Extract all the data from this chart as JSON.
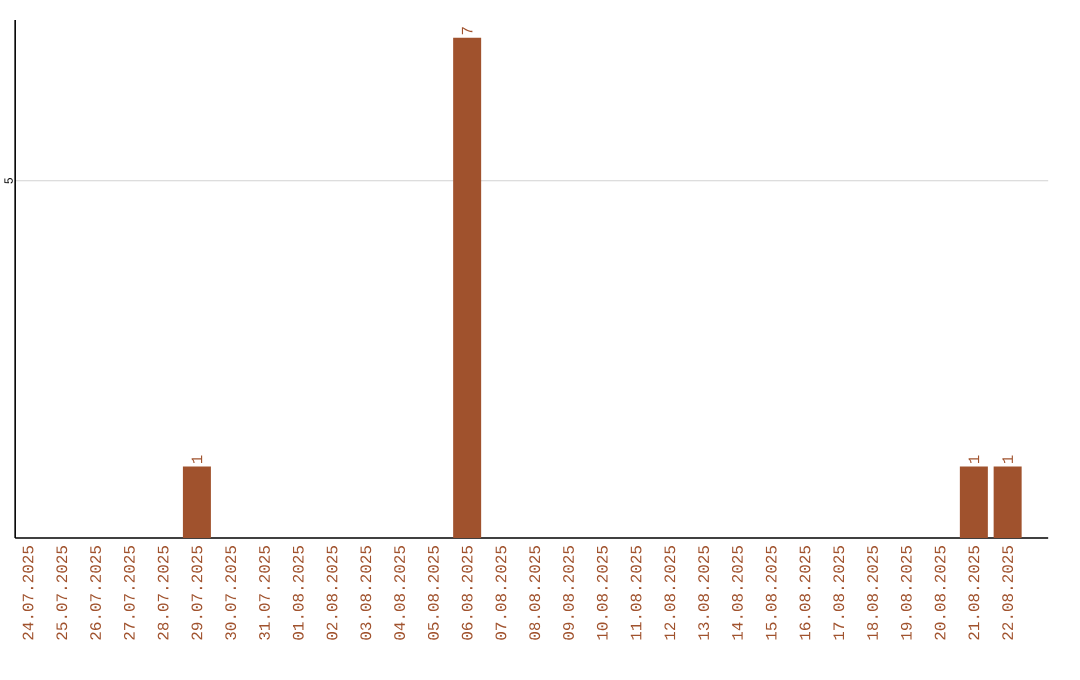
{
  "chart_data": {
    "type": "bar",
    "categories": [
      "24.07.2025",
      "25.07.2025",
      "26.07.2025",
      "27.07.2025",
      "28.07.2025",
      "29.07.2025",
      "30.07.2025",
      "31.07.2025",
      "01.08.2025",
      "02.08.2025",
      "03.08.2025",
      "04.08.2025",
      "05.08.2025",
      "06.08.2025",
      "07.08.2025",
      "08.08.2025",
      "09.08.2025",
      "10.08.2025",
      "11.08.2025",
      "12.08.2025",
      "13.08.2025",
      "14.08.2025",
      "15.08.2025",
      "16.08.2025",
      "17.08.2025",
      "18.08.2025",
      "19.08.2025",
      "20.08.2025",
      "21.08.2025",
      "22.08.2025"
    ],
    "values": [
      0,
      0,
      0,
      0,
      0,
      1,
      0,
      0,
      0,
      0,
      0,
      0,
      0,
      7,
      0,
      0,
      0,
      0,
      0,
      0,
      0,
      0,
      0,
      0,
      0,
      0,
      0,
      0,
      1,
      1
    ],
    "value_labels": [
      null,
      null,
      null,
      null,
      null,
      "1",
      null,
      null,
      null,
      null,
      null,
      null,
      null,
      "7",
      null,
      null,
      null,
      null,
      null,
      null,
      null,
      null,
      null,
      null,
      null,
      null,
      null,
      null,
      "1",
      "1"
    ],
    "color": "#a0522d",
    "ylim": [
      0,
      7.25
    ],
    "yticks": [
      5
    ],
    "grid": "y"
  }
}
